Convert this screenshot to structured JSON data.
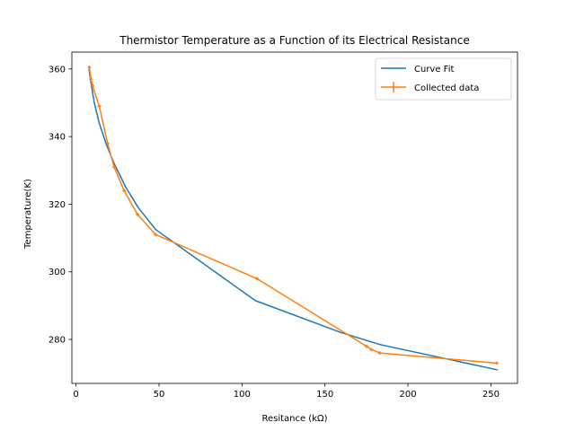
{
  "chart_data": {
    "type": "line",
    "title": "Thermistor Temperature as a Function of its Electrical Resistance",
    "xlabel": "Resitance (kΩ)",
    "ylabel": "Temperature(K)",
    "xlim": [
      -2.5,
      266
    ],
    "ylim": [
      267,
      365
    ],
    "xticks": [
      0,
      50,
      100,
      150,
      200,
      250
    ],
    "yticks": [
      280,
      300,
      320,
      340,
      360
    ],
    "grid": false,
    "legend_position": "top-right",
    "colors": {
      "curve_fit": "#1f77b4",
      "collected_data": "#ff7f0e"
    },
    "series": [
      {
        "name": "Curve Fit",
        "kind": "line",
        "x": [
          7.8,
          9.0,
          11.0,
          14.0,
          18.0,
          23.0,
          30.0,
          37.5,
          48.0,
          108.0,
          160.0,
          183.0,
          254.0
        ],
        "y": [
          360.0,
          356.0,
          350.0,
          344.0,
          338.0,
          332.0,
          325.0,
          319.0,
          312.5,
          291.5,
          282.0,
          278.5,
          271.0
        ]
      },
      {
        "name": "Collected data",
        "kind": "errorbar",
        "x": [
          8.0,
          9.0,
          10.0,
          14.0,
          19.0,
          23.0,
          29.0,
          37.0,
          48.0,
          109.0,
          175.0,
          178.0,
          183.0,
          253.5
        ],
        "y": [
          360.5,
          357.0,
          355.0,
          349.0,
          338.0,
          331.0,
          324.0,
          317.0,
          311.0,
          298.0,
          278.0,
          277.0,
          276.0,
          273.0
        ],
        "yerr": [
          0.5,
          0.5,
          0.5,
          0.5,
          0.5,
          0.5,
          0.5,
          0.5,
          0.5,
          0.5,
          0.5,
          0.5,
          0.5,
          0.5
        ]
      }
    ]
  }
}
